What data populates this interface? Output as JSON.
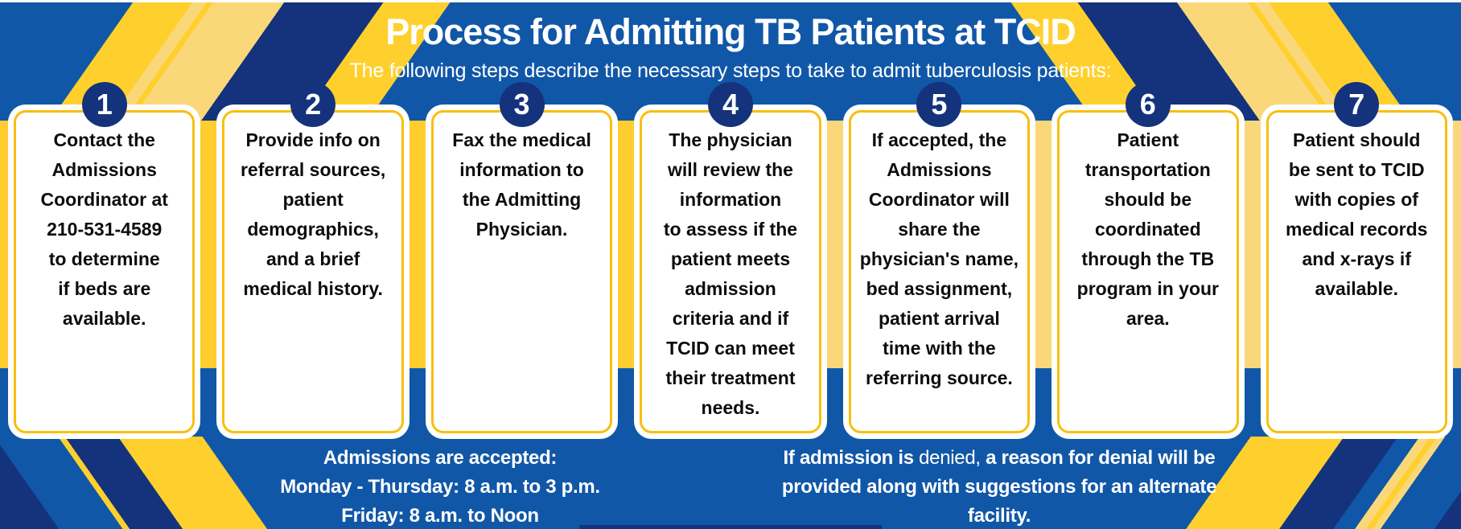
{
  "header": {
    "title": "Process for Admitting TB Patients at TCID",
    "subtitle": "The following steps describe the necessary steps to take to admit tuberculosis patients:"
  },
  "steps": [
    {
      "number": "1",
      "text": "Contact the\nAdmissions\nCoordinator at\n210-531-4589\nto determine\nif beds are\navailable."
    },
    {
      "number": "2",
      "text": "Provide info on\nreferral sources,\npatient\ndemographics,\nand a brief\nmedical history."
    },
    {
      "number": "3",
      "text": "Fax the medical\ninformation to\nthe Admitting\nPhysician."
    },
    {
      "number": "4",
      "text": "The physician\nwill review the\ninformation\nto assess if the\npatient meets\nadmission\ncriteria and if\nTCID can meet\ntheir treatment\nneeds."
    },
    {
      "number": "5",
      "text": "If accepted, the\nAdmissions\nCoordinator will\nshare the\nphysician's name,\nbed assignment,\npatient arrival\ntime with the\nreferring source."
    },
    {
      "number": "6",
      "text": "Patient\ntransportation\nshould be\ncoordinated\nthrough the TB\nprogram in your\narea."
    },
    {
      "number": "7",
      "text": "Patient should\nbe sent to TCID\nwith copies of\nmedical records\nand x-rays if\navailable."
    }
  ],
  "footer": {
    "hours": "Admissions are accepted:\nMonday - Thursday: 8 a.m. to 3 p.m.\nFriday: 8 a.m. to Noon",
    "denial": {
      "bold_lead": "If admission is",
      "regular_word": "denied,",
      "bold_rest": "a reason for denial will be provided along with suggestions for an alternate facility."
    }
  },
  "colors": {
    "base-blue": "#1157a7",
    "navy": "#14337c",
    "gold": "#ffd02d",
    "light-gold": "#fad87a",
    "band-gold": "#ffcd2e",
    "card-border": "#f8bf10",
    "text-dark": "#0d0d0d",
    "white": "#ffffff"
  }
}
